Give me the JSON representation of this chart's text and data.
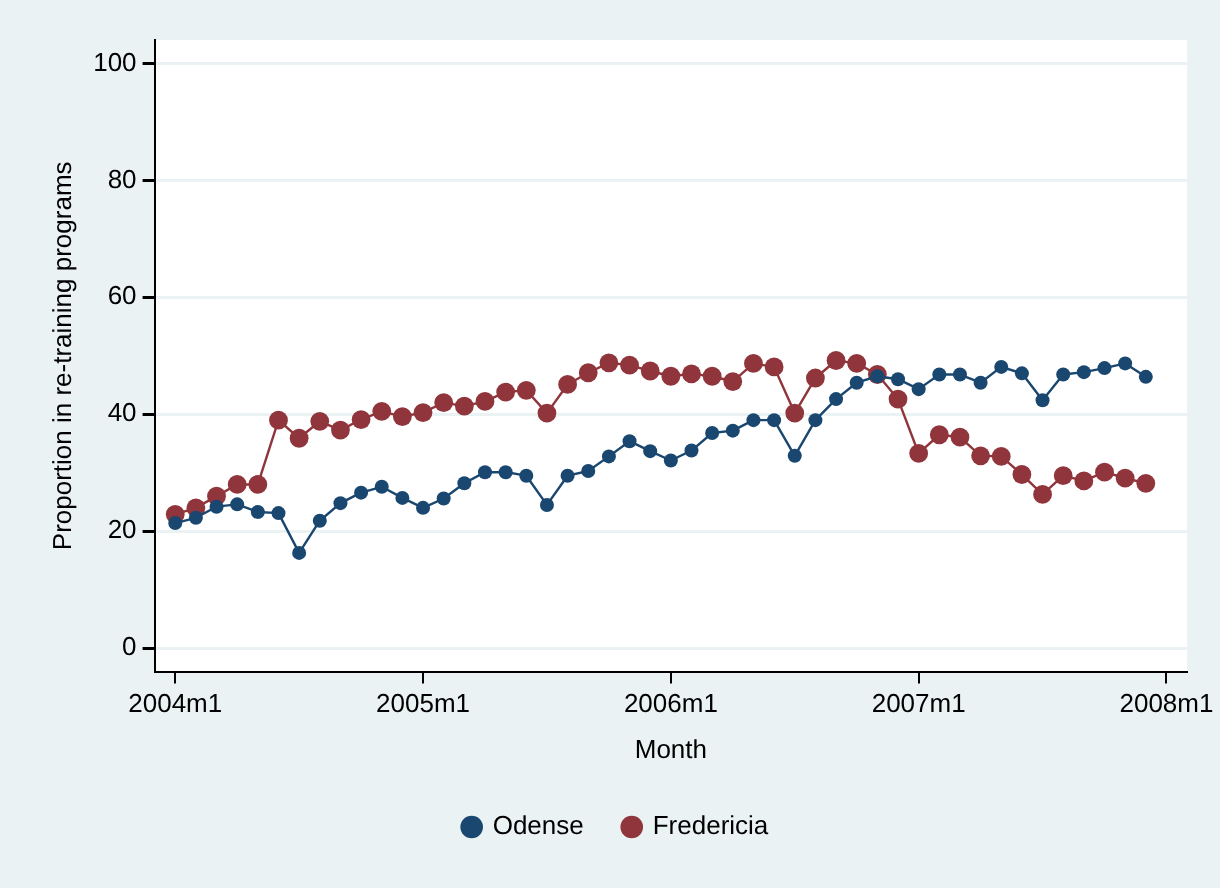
{
  "chart_data": {
    "type": "line",
    "xlabel": "Month",
    "ylabel": "Proportion in re-training programs",
    "x": [
      "2004-01",
      "2004-02",
      "2004-03",
      "2004-04",
      "2004-05",
      "2004-06",
      "2004-07",
      "2004-08",
      "2004-09",
      "2004-10",
      "2004-11",
      "2004-12",
      "2005-01",
      "2005-02",
      "2005-03",
      "2005-04",
      "2005-05",
      "2005-06",
      "2005-07",
      "2005-08",
      "2005-09",
      "2005-10",
      "2005-11",
      "2005-12",
      "2006-01",
      "2006-02",
      "2006-03",
      "2006-04",
      "2006-05",
      "2006-06",
      "2006-07",
      "2006-08",
      "2006-09",
      "2006-10",
      "2006-11",
      "2006-12",
      "2007-01",
      "2007-02",
      "2007-03",
      "2007-04",
      "2007-05",
      "2007-06",
      "2007-07",
      "2007-08",
      "2007-09",
      "2007-10",
      "2007-11",
      "2007-12"
    ],
    "series": [
      {
        "name": "Odense",
        "color": "#1a476f",
        "values": [
          21.4,
          22.3,
          24.2,
          24.6,
          23.3,
          23.1,
          16.3,
          21.8,
          24.8,
          26.6,
          27.6,
          25.7,
          24,
          25.6,
          28.2,
          30.1,
          30.1,
          29.5,
          24.5,
          29.5,
          30.3,
          32.8,
          35.4,
          33.7,
          32.1,
          33.8,
          36.8,
          37.2,
          39,
          39,
          32.9,
          39,
          42.6,
          45.4,
          46.5,
          46,
          44.3,
          46.8,
          46.8,
          45.4,
          48.1,
          47,
          42.4,
          46.8,
          47.2,
          47.9,
          48.7,
          46.4
        ]
      },
      {
        "name": "Fredericia",
        "color": "#90353b",
        "values": [
          22.9,
          24,
          26,
          28,
          28,
          39,
          35.9,
          38.8,
          37.3,
          39.1,
          40.5,
          39.6,
          40.3,
          42,
          41.4,
          42.2,
          43.8,
          44.1,
          40.2,
          45.1,
          47.1,
          48.8,
          48.4,
          47.4,
          46.5,
          46.9,
          46.5,
          45.6,
          48.7,
          48.1,
          40.2,
          46.2,
          49.2,
          48.7,
          46.8,
          42.6,
          33.3,
          36.5,
          36.1,
          32.9,
          32.8,
          29.7,
          26.3,
          29.5,
          28.6,
          30.1,
          29.1,
          28.2
        ]
      }
    ],
    "xlim": [
      "2003-12",
      "2008-02"
    ],
    "xticks": [
      {
        "value": "2004-01",
        "label": "2004m1"
      },
      {
        "value": "2005-01",
        "label": "2005m1"
      },
      {
        "value": "2006-01",
        "label": "2006m1"
      },
      {
        "value": "2007-01",
        "label": "2007m1"
      },
      {
        "value": "2008-01",
        "label": "2008m1"
      }
    ],
    "ylim": [
      -4,
      104
    ],
    "yticks": [
      0,
      20,
      40,
      60,
      80,
      100
    ],
    "grid": "y",
    "legend": "bottom",
    "marker": "circle",
    "line_style": "solid"
  }
}
